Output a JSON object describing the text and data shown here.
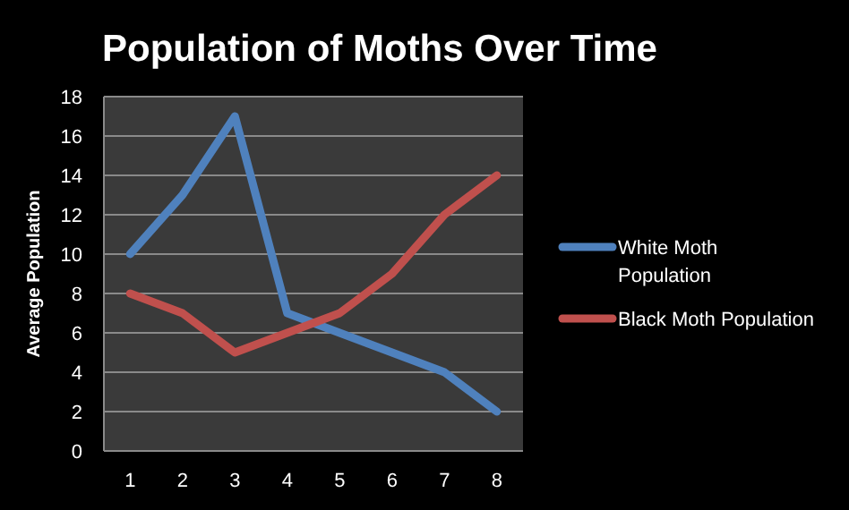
{
  "chart_data": {
    "type": "line",
    "title": "Population of Moths Over Time",
    "ylabel": "Average Population",
    "categories": [
      "1",
      "2",
      "3",
      "4",
      "5",
      "6",
      "7",
      "8"
    ],
    "series": [
      {
        "name": "White Moth Population",
        "color": "#4f81bd",
        "values": [
          10,
          13,
          17,
          7,
          6,
          5,
          4,
          2
        ]
      },
      {
        "name": "Black Moth Population",
        "color": "#c0504d",
        "values": [
          8,
          7,
          5,
          6,
          7,
          9,
          12,
          14
        ]
      }
    ],
    "ylim": [
      0,
      18
    ],
    "yticks": [
      0,
      2,
      4,
      6,
      8,
      10,
      12,
      14,
      16,
      18
    ],
    "grid": "y",
    "legend": "right",
    "marker": "none",
    "line_style": "solid"
  }
}
